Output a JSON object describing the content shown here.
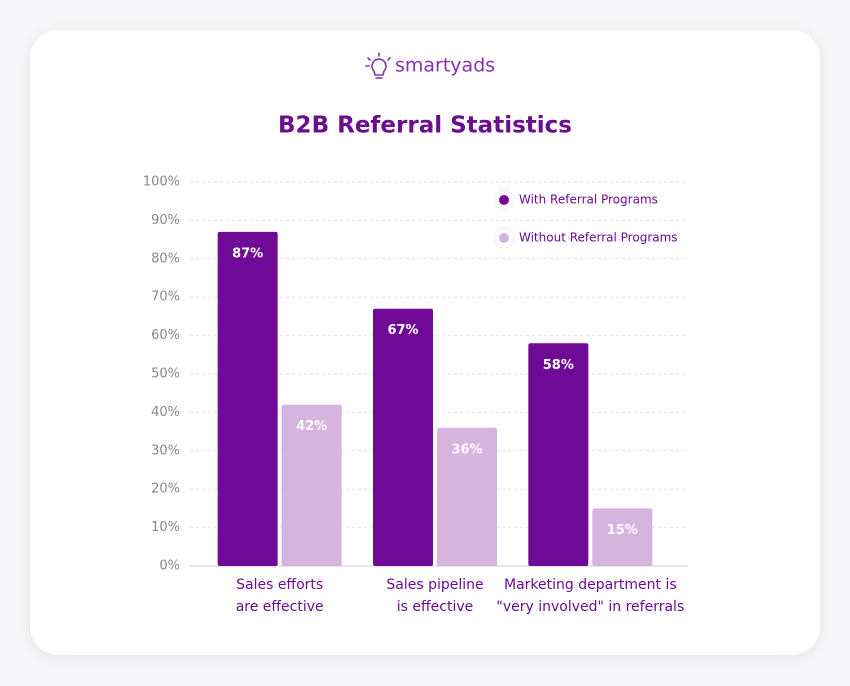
{
  "brand": "smartyads",
  "chart_data": {
    "type": "bar",
    "title": "B2B Referral Statistics",
    "categories": [
      "Sales efforts\nare effective",
      "Sales pipeline\nis effective",
      "Marketing department is\n\"very involved\" in referrals"
    ],
    "series": [
      {
        "name": "With Referral Programs",
        "color": "#6e0a96",
        "values": [
          87,
          67,
          58
        ],
        "value_labels": [
          "87%",
          "67%",
          "58%"
        ]
      },
      {
        "name": "Without Referral Programs",
        "color": "#d6b4e0",
        "values": [
          42,
          36,
          15
        ],
        "value_labels": [
          "42%",
          "36%",
          "15%"
        ]
      }
    ],
    "ylim": [
      0,
      100
    ],
    "yticks": [
      {
        "value": 0,
        "label": "0%"
      },
      {
        "value": 10,
        "label": "10%"
      },
      {
        "value": 20,
        "label": "20%"
      },
      {
        "value": 30,
        "label": "30%"
      },
      {
        "value": 40,
        "label": "40%"
      },
      {
        "value": 50,
        "label": "50%"
      },
      {
        "value": 60,
        "label": "60%"
      },
      {
        "value": 70,
        "label": "70%"
      },
      {
        "value": 80,
        "label": "80%"
      },
      {
        "value": 90,
        "label": "90%"
      },
      {
        "value": 100,
        "label": "100%"
      }
    ],
    "grid": true,
    "legend": "upper right"
  }
}
